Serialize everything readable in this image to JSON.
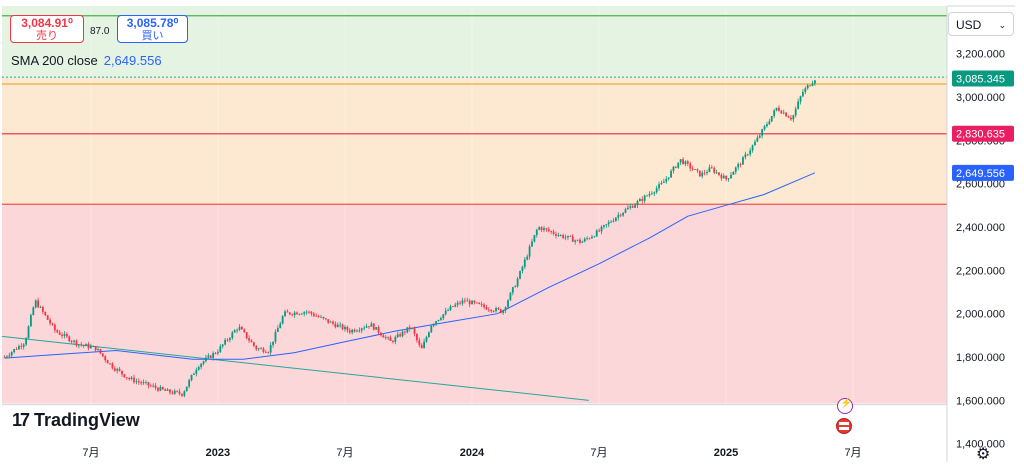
{
  "quote": {
    "sell_price": "3,084.91⁰",
    "sell_label": "売り",
    "buy_price": "3,085.78⁰",
    "buy_label": "買い",
    "spread": "87.0"
  },
  "indicator": {
    "label": "SMA 200 close",
    "value": "2,649.556"
  },
  "currency": {
    "selected": "USD"
  },
  "branding": {
    "logo_text": "TradingView"
  },
  "chart_data": {
    "type": "candlestick",
    "y_axis": {
      "range": [
        1380,
        3420
      ],
      "ticks": [
        1400,
        1600,
        1800,
        2000,
        2200,
        2400,
        2600,
        2800,
        3000,
        3200
      ],
      "tick_labels": [
        "1,400.000",
        "1,600.000",
        "1,800.000",
        "2,000.000",
        "2,200.000",
        "2,400.000",
        "2,600.000",
        "2,800.000",
        "3,000.000",
        "3,200.000"
      ]
    },
    "x_axis": {
      "range": [
        2022.15,
        2025.87
      ],
      "ticks": [
        2022.5,
        2023.0,
        2023.5,
        2024.0,
        2024.5,
        2025.0,
        2025.5
      ],
      "tick_labels": [
        "7月",
        "2023",
        "7月",
        "2024",
        "7月",
        "2025",
        "7月"
      ]
    },
    "price_labels": [
      {
        "value": 3085.345,
        "label": "3,085.345",
        "color": "#089981"
      },
      {
        "value": 2830.635,
        "label": "2,830.635",
        "color": "#e91e63"
      },
      {
        "value": 2649.556,
        "label": "2,649.556",
        "color": "#2962ff"
      }
    ],
    "zones": [
      {
        "from": 3088,
        "to": 3420,
        "color": "#e5f3e3"
      },
      {
        "from": 2505,
        "to": 3088,
        "color": "#fde9d2"
      },
      {
        "from": 1380,
        "to": 2505,
        "color": "#fbd7d9"
      }
    ],
    "horizontal_lines": [
      {
        "value": 3375,
        "color": "#4caf50"
      },
      {
        "value": 3092,
        "color": "#26a69a",
        "dashed": true
      },
      {
        "value": 3060,
        "color": "#e0b13a"
      },
      {
        "value": 2830,
        "color": "#e5293b"
      },
      {
        "value": 2505,
        "color": "#ef5350"
      }
    ],
    "trend_line": {
      "from": [
        2022.15,
        1895
      ],
      "to": [
        2024.46,
        1600
      ],
      "color": "#26a69a"
    },
    "price_path": [
      [
        2022.16,
        1800
      ],
      [
        2022.24,
        1870
      ],
      [
        2022.28,
        2060
      ],
      [
        2022.36,
        1920
      ],
      [
        2022.45,
        1860
      ],
      [
        2022.52,
        1840
      ],
      [
        2022.58,
        1760
      ],
      [
        2022.65,
        1700
      ],
      [
        2022.7,
        1680
      ],
      [
        2022.8,
        1640
      ],
      [
        2022.86,
        1630
      ],
      [
        2022.92,
        1760
      ],
      [
        2023.0,
        1830
      ],
      [
        2023.08,
        1940
      ],
      [
        2023.15,
        1840
      ],
      [
        2023.2,
        1830
      ],
      [
        2023.26,
        2000
      ],
      [
        2023.35,
        2010
      ],
      [
        2023.44,
        1960
      ],
      [
        2023.52,
        1920
      ],
      [
        2023.6,
        1950
      ],
      [
        2023.68,
        1870
      ],
      [
        2023.76,
        1940
      ],
      [
        2023.8,
        1830
      ],
      [
        2023.84,
        1950
      ],
      [
        2023.92,
        2030
      ],
      [
        2023.97,
        2060
      ],
      [
        2024.05,
        2030
      ],
      [
        2024.12,
        2010
      ],
      [
        2024.18,
        2160
      ],
      [
        2024.26,
        2400
      ],
      [
        2024.35,
        2360
      ],
      [
        2024.43,
        2330
      ],
      [
        2024.5,
        2380
      ],
      [
        2024.58,
        2460
      ],
      [
        2024.66,
        2520
      ],
      [
        2024.75,
        2600
      ],
      [
        2024.82,
        2710
      ],
      [
        2024.9,
        2640
      ],
      [
        2024.94,
        2670
      ],
      [
        2025.0,
        2620
      ],
      [
        2025.06,
        2700
      ],
      [
        2025.12,
        2800
      ],
      [
        2025.2,
        2950
      ],
      [
        2025.26,
        2900
      ],
      [
        2025.3,
        3020
      ],
      [
        2025.35,
        3085
      ]
    ],
    "sma_path": [
      [
        2022.16,
        1795
      ],
      [
        2022.35,
        1810
      ],
      [
        2022.6,
        1830
      ],
      [
        2022.9,
        1790
      ],
      [
        2023.1,
        1790
      ],
      [
        2023.3,
        1820
      ],
      [
        2023.5,
        1870
      ],
      [
        2023.7,
        1920
      ],
      [
        2023.9,
        1960
      ],
      [
        2024.1,
        2000
      ],
      [
        2024.3,
        2120
      ],
      [
        2024.5,
        2230
      ],
      [
        2024.7,
        2350
      ],
      [
        2024.85,
        2450
      ],
      [
        2025.0,
        2500
      ],
      [
        2025.15,
        2550
      ],
      [
        2025.35,
        2650
      ]
    ]
  }
}
